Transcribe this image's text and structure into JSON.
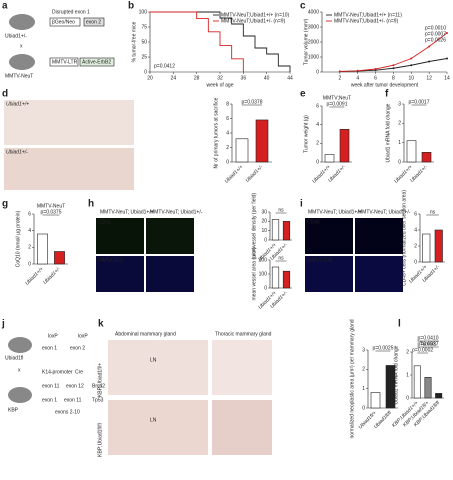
{
  "chart_data": [
    {
      "type": "step",
      "xlabel": "week of age",
      "ylabel": "% tumor-free mice",
      "xlim": [
        20,
        44
      ],
      "xticks": [
        20,
        24,
        28,
        32,
        36,
        40,
        44
      ],
      "ylim": [
        0,
        100
      ],
      "yticks": [
        0,
        25,
        50,
        75,
        100
      ],
      "annotations": [
        "p=0.0412"
      ],
      "legend": "upper right",
      "series": [
        {
          "name": "MMTV-NeuT;Ubiad1+/+ (n=10)",
          "color": "#222222",
          "x": [
            20,
            30,
            32,
            34,
            36,
            38,
            40,
            42,
            44
          ],
          "values": [
            100,
            100,
            90,
            80,
            60,
            40,
            30,
            10,
            0
          ]
        },
        {
          "name": "MMTV-NeuT;Ubiad1+/- (n=9)",
          "color": "#d42020",
          "x": [
            20,
            26,
            28,
            30,
            32,
            34,
            36
          ],
          "values": [
            100,
            100,
            89,
            67,
            44,
            22,
            0
          ]
        }
      ]
    },
    {
      "type": "line",
      "xlabel": "week after tumor development",
      "ylabel": "Tumor volume (mm³)",
      "xlim": [
        0,
        14
      ],
      "xticks": [
        2,
        4,
        6,
        8,
        10,
        12,
        14
      ],
      "ylim": [
        0,
        4000
      ],
      "yticks": [
        0,
        1000,
        2000,
        3000,
        4000
      ],
      "annotations": [
        "p=0.0010",
        "p=0.0007",
        "p=0.0026"
      ],
      "legend": "upper left",
      "series": [
        {
          "name": "MMTV-NeuT;Ubiad1+/+ (n=11)",
          "color": "#222222",
          "x": [
            2,
            4,
            6,
            8,
            10,
            12,
            14
          ],
          "values": [
            30,
            60,
            120,
            250,
            450,
            700,
            900
          ]
        },
        {
          "name": "MMTV-NeuT;Ubiad1+/- (n=9)",
          "color": "#d42020",
          "x": [
            2,
            4,
            6,
            8,
            10,
            12,
            14
          ],
          "values": [
            40,
            80,
            200,
            450,
            900,
            1700,
            2600
          ]
        }
      ]
    },
    {
      "type": "bar",
      "ylabel": "Nr of primary tumors at sacrifice",
      "categories": [
        "Ubiad1+/+",
        "Ubiad1+/-"
      ],
      "values": [
        3.2,
        5.8
      ],
      "colors": [
        "#ffffff",
        "#d42020"
      ],
      "ylim": [
        0,
        8
      ],
      "yticks": [
        0,
        2,
        4,
        6,
        8
      ],
      "annotations": [
        "p=0.0378"
      ]
    },
    {
      "type": "bar",
      "title": "MMTV;NeuT",
      "ylabel": "Tumor weight (g)",
      "categories": [
        "Ubiad1+/+",
        "Ubiad1+/-"
      ],
      "values": [
        0.8,
        3.5
      ],
      "colors": [
        "#ffffff",
        "#d42020"
      ],
      "ylim": [
        0,
        6
      ],
      "yticks": [
        0,
        2,
        4,
        6
      ],
      "annotations": [
        "p=0.0091"
      ]
    },
    {
      "type": "bar",
      "ylabel": "Ubiad1 mRNA fold change",
      "categories": [
        "Ubiad1+/+",
        "Ubiad1+/-"
      ],
      "values": [
        1.1,
        0.5
      ],
      "colors": [
        "#ffffff",
        "#d42020"
      ],
      "ylim": [
        0,
        3
      ],
      "yticks": [
        0,
        1,
        2,
        3
      ],
      "annotations": [
        "p=0.0017"
      ]
    },
    {
      "type": "bar",
      "title": "MMTV-NeuT",
      "ylabel": "CoQ10 (nmol/ µg protein)",
      "categories": [
        "Ubiad1+/+",
        "Ubiad1+/-"
      ],
      "values": [
        3.6,
        1.5
      ],
      "colors": [
        "#ffffff",
        "#d42020"
      ],
      "ylim": [
        0,
        6
      ],
      "yticks": [
        0,
        2,
        4,
        6
      ],
      "annotations": [
        "p=0.0375"
      ]
    },
    {
      "type": "bar",
      "ylabel": "microvessel density (per field)",
      "categories": [
        "Ubiad1+/+",
        "Ubiad1+/-"
      ],
      "values": [
        22,
        20
      ],
      "colors": [
        "#ffffff",
        "#d42020"
      ],
      "ylim": [
        0,
        30
      ],
      "yticks": [
        0,
        10,
        20,
        30
      ],
      "annotations": [
        "ns"
      ]
    },
    {
      "type": "bar",
      "ylabel": "mean vessel area (µm²)",
      "categories": [
        "Ubiad1+/+",
        "Ubiad1+/-"
      ],
      "values": [
        150,
        120
      ],
      "colors": [
        "#ffffff",
        "#d42020"
      ],
      "ylim": [
        0,
        200
      ],
      "yticks": [
        0,
        100,
        200
      ],
      "annotations": [
        "ns"
      ]
    },
    {
      "type": "bar",
      "ylabel": "CD45+ cells (normalized over section area)",
      "categories": [
        "Ubiad1+/+",
        "Ubiad1+/-"
      ],
      "values": [
        3.5,
        4
      ],
      "colors": [
        "#ffffff",
        "#d42020"
      ],
      "ylim": [
        0,
        6
      ],
      "yticks": [
        0,
        2,
        4,
        6
      ],
      "annotations": [
        "ns"
      ]
    },
    {
      "type": "bar",
      "ylabel": "normalized neoplastic area (µm²) per mammary gland",
      "categories": [
        "Ubiad1fl/+",
        "Ubiad1fl/fl"
      ],
      "values": [
        0.8,
        2.2
      ],
      "colors": [
        "#ffffff",
        "#222222"
      ],
      "ylim": [
        0,
        3
      ],
      "yticks": [
        0,
        1,
        2,
        3
      ],
      "annotations": [
        "p=0.0025"
      ]
    },
    {
      "type": "bar",
      "title": "Tumors",
      "ylabel": "Ubiad1 mRNA fold change",
      "categories": [
        "KBP;Ubiad1+/+",
        "KBP;Ubiad1fl/+",
        "KBP;Ubiad1fl/fl"
      ],
      "values": [
        1.4,
        0.9,
        0.2
      ],
      "colors": [
        "#ffffff",
        "#888888",
        "#222222"
      ],
      "ylim": [
        0,
        2
      ],
      "yticks": [
        0,
        1,
        2
      ],
      "annotations": [
        "p=0.0002",
        "p=0.0027",
        "p=0.0410"
      ]
    }
  ],
  "panels": {
    "letters": [
      "a",
      "b",
      "c",
      "d",
      "e",
      "f",
      "g",
      "h",
      "i",
      "j",
      "k",
      "l"
    ],
    "a": [
      "Ubiad1+/-",
      "x",
      "MMTV-NeuT",
      "Disrupted exon 1",
      "βGeo/Neo",
      "exon 2",
      "MMTV-LTR",
      "Active-ErbB2"
    ],
    "d": [
      "Ubiad1+/+",
      "Ubiad1+/-"
    ],
    "h": [
      "MMTV-NeuT; Ubiad1+/+",
      "MMTV-NeuT; Ubiad1+/-",
      "CD31",
      "DAPI/CD31"
    ],
    "i": [
      "MMTV-NeuT; Ubiad1+/+",
      "MMTV-NeuT; Ubiad1+/-",
      "CD45",
      "DAPI/CD45"
    ],
    "j": [
      "Ubiad1fl",
      "x",
      "KBP",
      "loxP",
      "loxP",
      "exon 1",
      "exon 2",
      "K14-promoter",
      "Cre",
      "exon 11",
      "exon 12",
      "Brca2",
      "exon 1",
      "exon 11",
      "exons 2-10",
      "Tp53"
    ],
    "k": [
      "Abdominal mammary gland",
      "Thoracic mammary gland",
      "KBP;Ubiad1fl/+",
      "KBP;Ubiad1fl/fl",
      "LN",
      "LN"
    ]
  }
}
